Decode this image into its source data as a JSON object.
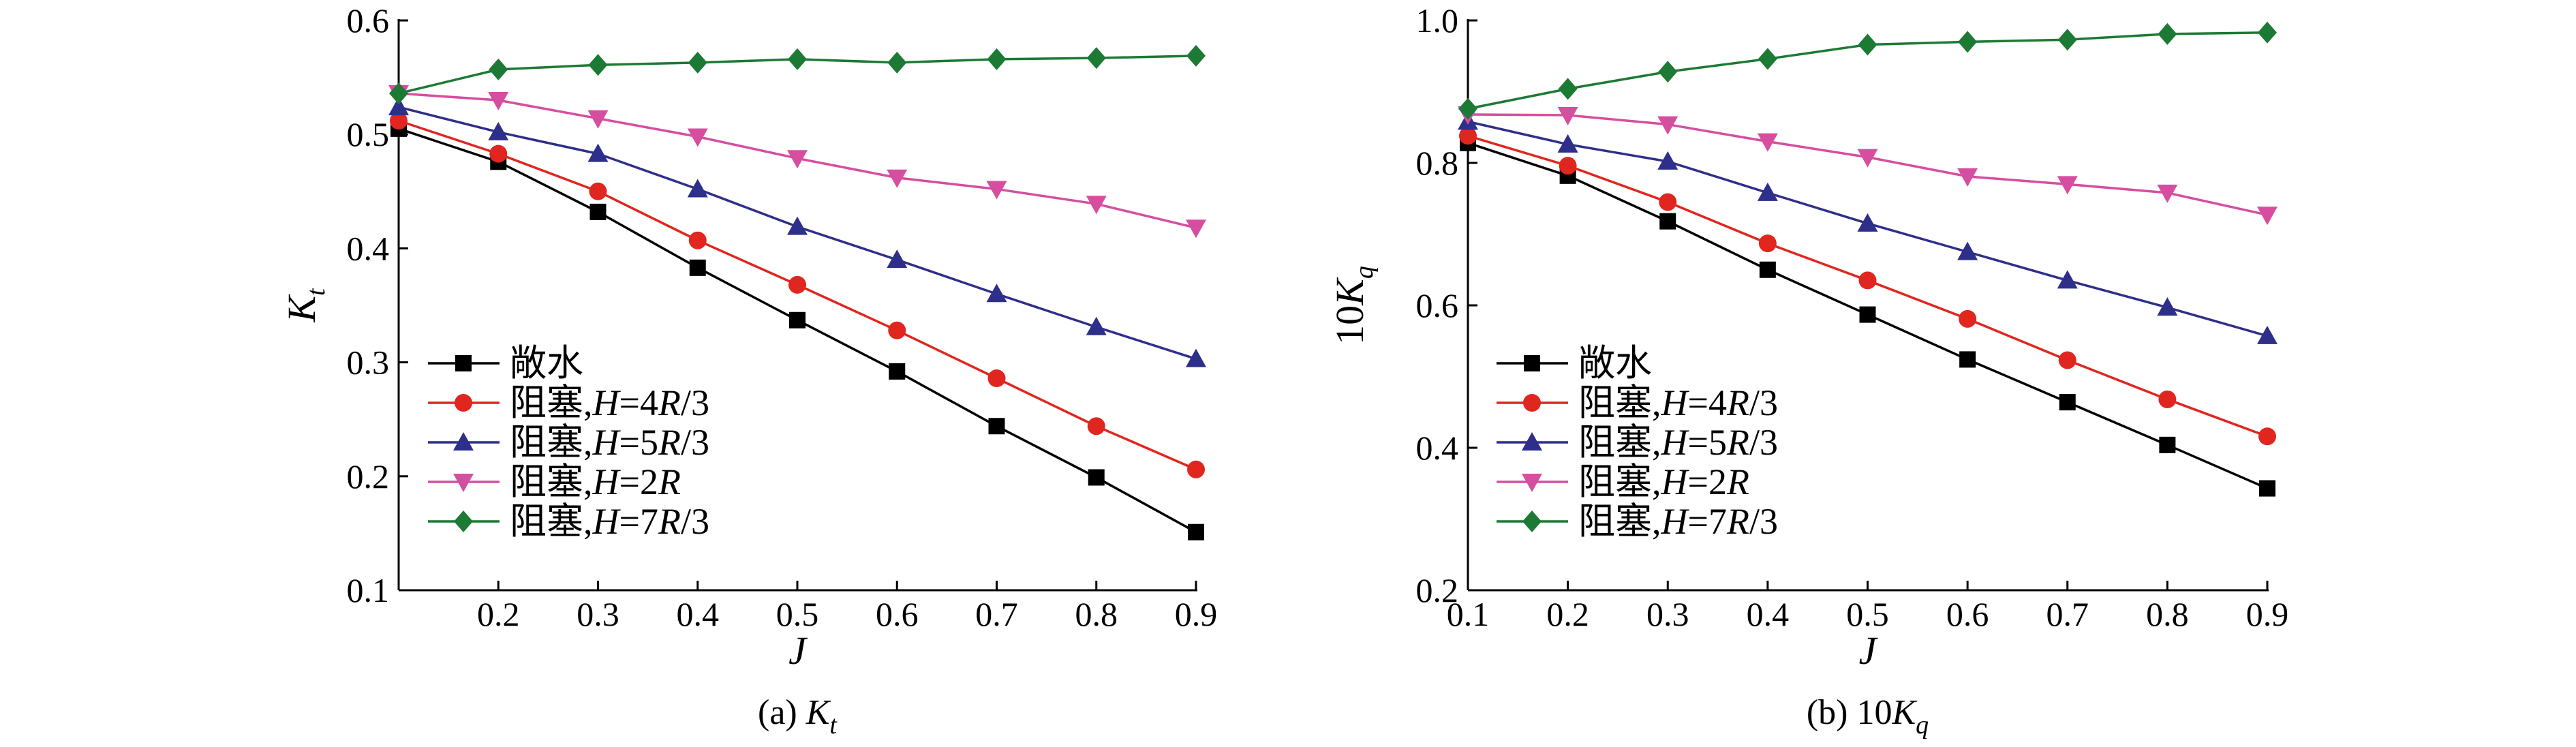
{
  "chart_data": [
    {
      "type": "line",
      "caption_prefix": "(a) ",
      "caption_main": "K",
      "caption_sub": "t",
      "ylabel_main": "K",
      "ylabel_sub": "t",
      "xlabel": "J",
      "xlim": [
        0.1,
        0.9
      ],
      "ylim": [
        0.1,
        0.6
      ],
      "xticks": [
        0.2,
        0.3,
        0.4,
        0.5,
        0.6,
        0.7,
        0.8,
        0.9
      ],
      "xtick_labels": [
        "0.2",
        "0.3",
        "0.4",
        "0.5",
        "0.6",
        "0.7",
        "0.8",
        "0.9"
      ],
      "yticks": [
        0.1,
        0.2,
        0.3,
        0.4,
        0.5,
        0.6
      ],
      "ytick_labels": [
        "0.1",
        "0.2",
        "0.3",
        "0.4",
        "0.5",
        "0.6"
      ],
      "legend_position": "bottom-left",
      "x": [
        0.1,
        0.2,
        0.3,
        0.4,
        0.5,
        0.6,
        0.7,
        0.8,
        0.9
      ],
      "series": [
        {
          "name": "敞水",
          "color": "#000000",
          "marker": "square",
          "values": [
            0.505,
            0.476,
            0.432,
            0.383,
            0.337,
            0.292,
            0.244,
            0.199,
            0.151
          ]
        },
        {
          "name": "阻塞,H=4R/3",
          "color": "#e0261f",
          "marker": "circle",
          "values": [
            0.512,
            0.483,
            0.45,
            0.407,
            0.368,
            0.328,
            0.286,
            0.244,
            0.206
          ]
        },
        {
          "name": "阻塞,H=5R/3",
          "color": "#2e2f8a",
          "marker": "triangle-up",
          "values": [
            0.524,
            0.502,
            0.483,
            0.452,
            0.419,
            0.39,
            0.36,
            0.331,
            0.303
          ]
        },
        {
          "name": "阻塞,H=2R",
          "color": "#d64ea0",
          "marker": "triangle-down",
          "values": [
            0.536,
            0.53,
            0.514,
            0.498,
            0.479,
            0.462,
            0.452,
            0.439,
            0.418
          ]
        },
        {
          "name": "阻塞,H=7R/3",
          "color": "#1c7a35",
          "marker": "diamond",
          "values": [
            0.536,
            0.557,
            0.561,
            0.563,
            0.566,
            0.563,
            0.566,
            0.567,
            0.569
          ]
        }
      ]
    },
    {
      "type": "line",
      "caption_prefix": "(b) 10",
      "caption_main": "K",
      "caption_sub": "q",
      "ylabel_prefix": "10",
      "ylabel_main": "K",
      "ylabel_sub": "q",
      "xlabel": "J",
      "xlim": [
        0.1,
        0.9
      ],
      "ylim": [
        0.2,
        1.0
      ],
      "xticks": [
        0.1,
        0.2,
        0.3,
        0.4,
        0.5,
        0.6,
        0.7,
        0.8,
        0.9
      ],
      "xtick_labels": [
        "0.1",
        "0.2",
        "0.3",
        "0.4",
        "0.5",
        "0.6",
        "0.7",
        "0.8",
        "0.9"
      ],
      "yticks": [
        0.2,
        0.4,
        0.6,
        0.8,
        1.0
      ],
      "ytick_labels": [
        "0.2",
        "0.4",
        "0.6",
        "0.8",
        "1.0"
      ],
      "legend_position": "bottom-left",
      "x": [
        0.1,
        0.2,
        0.3,
        0.4,
        0.5,
        0.6,
        0.7,
        0.8,
        0.9
      ],
      "series": [
        {
          "name": "敞水",
          "color": "#000000",
          "marker": "square",
          "values": [
            0.828,
            0.782,
            0.718,
            0.65,
            0.587,
            0.524,
            0.464,
            0.404,
            0.343
          ]
        },
        {
          "name": "阻塞,H=4R/3",
          "color": "#e0261f",
          "marker": "circle",
          "values": [
            0.838,
            0.796,
            0.745,
            0.687,
            0.635,
            0.581,
            0.523,
            0.468,
            0.416
          ]
        },
        {
          "name": "阻塞,H=5R/3",
          "color": "#2e2f8a",
          "marker": "triangle-up",
          "values": [
            0.858,
            0.826,
            0.802,
            0.758,
            0.715,
            0.675,
            0.635,
            0.597,
            0.557
          ]
        },
        {
          "name": "阻塞,H=2R",
          "color": "#d64ea0",
          "marker": "triangle-down",
          "values": [
            0.868,
            0.867,
            0.854,
            0.83,
            0.808,
            0.781,
            0.77,
            0.758,
            0.727
          ]
        },
        {
          "name": "阻塞,H=7R/3",
          "color": "#1c7a35",
          "marker": "diamond",
          "values": [
            0.876,
            0.904,
            0.928,
            0.946,
            0.966,
            0.97,
            0.973,
            0.981,
            0.983
          ]
        }
      ]
    }
  ]
}
